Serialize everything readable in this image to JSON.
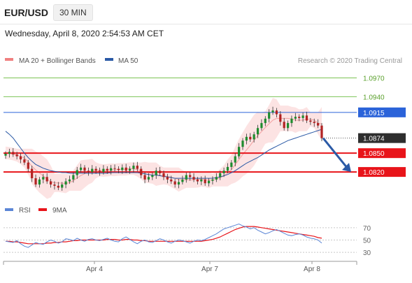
{
  "header": {
    "pair": "EUR/USD",
    "timeframe": "30 MIN",
    "datetime": "Wednesday, April 8, 2020 2:54:53 AM CET"
  },
  "chart_data": {
    "type": "candlestick",
    "copyright": "Research © 2020 Trading Central",
    "legend": [
      {
        "label": "MA 20 + Bollinger Bands",
        "color": "#f08080"
      },
      {
        "label": "MA 50",
        "color": "#2b5aa6"
      }
    ],
    "price_axis": {
      "ylim": [
        1.078,
        1.0985
      ]
    },
    "levels": [
      {
        "value": "1.0970",
        "style": "target",
        "color": "#7cc354"
      },
      {
        "value": "1.0940",
        "style": "target",
        "color": "#7cc354"
      },
      {
        "value": "1.0915",
        "style": "resistance",
        "color": "#2b63d9"
      },
      {
        "value": "1.0874",
        "style": "current",
        "color": "#2e2e2e"
      },
      {
        "value": "1.0850",
        "style": "support",
        "color": "#e8141a"
      },
      {
        "value": "1.0820",
        "style": "support",
        "color": "#e8141a"
      }
    ],
    "x_ticks": [
      "Apr 4",
      "Apr 7",
      "Apr 8"
    ],
    "price_series": [
      1.0849,
      1.0852,
      1.0848,
      1.0845,
      1.084,
      1.0835,
      1.0825,
      1.081,
      1.08,
      1.0808,
      1.0812,
      1.0805,
      1.08,
      1.0798,
      1.0795,
      1.08,
      1.0805,
      1.0808,
      1.0815,
      1.0823,
      1.0827,
      1.0822,
      1.082,
      1.0825,
      1.0822,
      1.082,
      1.0825,
      1.0822,
      1.0826,
      1.0825,
      1.0823,
      1.0827,
      1.0822,
      1.0825,
      1.083,
      1.0825,
      1.0815,
      1.0808,
      1.0812,
      1.0815,
      1.0822,
      1.0818,
      1.0812,
      1.0808,
      1.0805,
      1.08,
      1.0804,
      1.0808,
      1.0815,
      1.0812,
      1.0808,
      1.0805,
      1.0808,
      1.0802,
      1.0806,
      1.0808,
      1.0812,
      1.0818,
      1.0822,
      1.0828,
      1.0835,
      1.0845,
      1.086,
      1.087,
      1.0876,
      1.0872,
      1.088,
      1.089,
      1.0898,
      1.0905,
      1.0915,
      1.0918,
      1.0912,
      1.09,
      1.089,
      1.0898,
      1.0905,
      1.0908,
      1.0906,
      1.091,
      1.0902,
      1.09,
      1.0898,
      1.0894,
      1.0874
    ],
    "ma50": [
      1.0885,
      1.088,
      1.0874,
      1.0866,
      1.0858,
      1.085,
      1.0843,
      1.0837,
      1.0832,
      1.0829,
      1.0826,
      1.0824,
      1.0822,
      1.0821,
      1.082,
      1.0819,
      1.0819,
      1.0818,
      1.0818,
      1.0818,
      1.0818,
      1.0818,
      1.0818,
      1.0818,
      1.0818,
      1.0818,
      1.0818,
      1.0818,
      1.0819,
      1.0819,
      1.0819,
      1.0819,
      1.0819,
      1.0819,
      1.0819,
      1.0819,
      1.0818,
      1.0817,
      1.0816,
      1.0815,
      1.0815,
      1.0814,
      1.0813,
      1.0812,
      1.0811,
      1.081,
      1.081,
      1.081,
      1.081,
      1.081,
      1.081,
      1.081,
      1.081,
      1.081,
      1.081,
      1.081,
      1.0811,
      1.0812,
      1.0814,
      1.0816,
      1.0819,
      1.0822,
      1.0826,
      1.083,
      1.0834,
      1.0837,
      1.084,
      1.0843,
      1.0847,
      1.0851,
      1.0855,
      1.0858,
      1.0861,
      1.0864,
      1.0867,
      1.087,
      1.0872,
      1.0874,
      1.0876,
      1.0878,
      1.088,
      1.0882,
      1.0884,
      1.0886,
      1.0888
    ],
    "forecast_arrow": {
      "from": 1.0874,
      "to": 1.082
    },
    "rsi": {
      "legend": [
        {
          "label": "RSI",
          "color": "#5b86d6"
        },
        {
          "label": "9MA",
          "color": "#e8141a"
        }
      ],
      "levels": [
        "70",
        "50",
        "30"
      ],
      "ylim": [
        20,
        80
      ],
      "rsi": [
        48,
        47,
        46,
        49,
        44,
        40,
        38,
        42,
        46,
        44,
        43,
        47,
        50,
        48,
        45,
        47,
        52,
        51,
        49,
        53,
        50,
        48,
        51,
        52,
        50,
        49,
        51,
        53,
        50,
        48,
        47,
        52,
        55,
        51,
        47,
        44,
        48,
        50,
        47,
        46,
        49,
        52,
        50,
        47,
        45,
        48,
        50,
        49,
        47,
        45,
        48,
        50,
        49,
        51,
        54,
        57,
        60,
        64,
        68,
        70,
        72,
        74,
        76,
        73,
        71,
        68,
        70,
        66,
        63,
        60,
        62,
        65,
        67,
        64,
        61,
        58,
        57,
        59,
        60,
        58,
        55,
        53,
        52,
        50,
        45
      ],
      "ma": [
        48,
        48,
        47,
        47,
        46,
        45,
        44,
        44,
        44,
        44,
        44,
        45,
        45,
        46,
        46,
        47,
        47,
        48,
        49,
        49,
        50,
        50,
        50,
        50,
        50,
        50,
        50,
        51,
        51,
        51,
        50,
        50,
        51,
        51,
        50,
        50,
        49,
        49,
        48,
        48,
        48,
        48,
        48,
        48,
        48,
        48,
        48,
        48,
        48,
        48,
        48,
        48,
        48,
        49,
        50,
        51,
        53,
        55,
        58,
        61,
        64,
        67,
        69,
        71,
        72,
        72,
        72,
        71,
        70,
        69,
        68,
        67,
        66,
        65,
        64,
        63,
        62,
        61,
        60,
        59,
        58,
        57,
        56,
        54,
        53
      ]
    }
  }
}
